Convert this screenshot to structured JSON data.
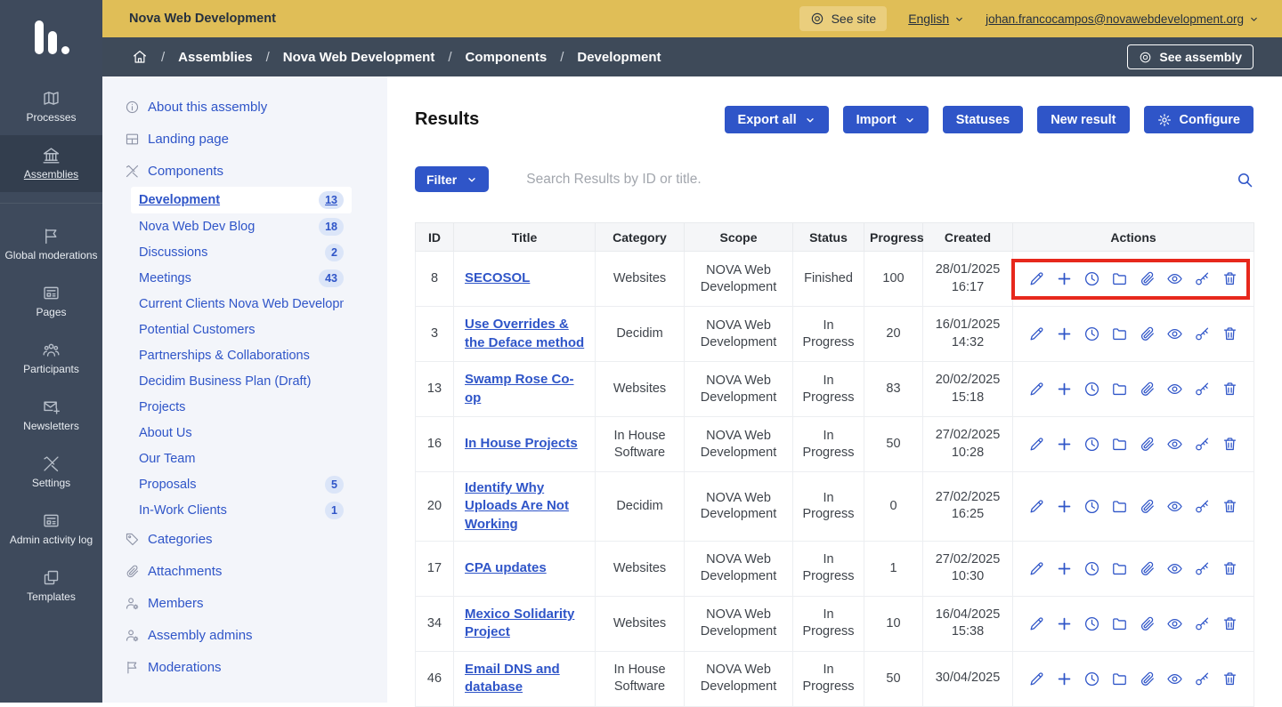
{
  "colors": {
    "primary_blue": "#2f55c8",
    "topbar_yellow": "#e0be57",
    "sidebar_dark": "#3e4a5c",
    "highlight_red": "#e7281c"
  },
  "topbar": {
    "brand": "Nova Web Development",
    "see_site": "See site",
    "language": "English",
    "user_email": "johan.francocampos@novawebdevelopment.org"
  },
  "breadcrumb": {
    "items": [
      "Assemblies",
      "Nova Web Development",
      "Components",
      "Development"
    ],
    "see_assembly": "See assembly"
  },
  "sidebar": {
    "groups": [
      [
        {
          "label": "Processes",
          "icon": "map",
          "active": false
        },
        {
          "label": "Assemblies",
          "icon": "building",
          "active": true
        }
      ],
      [
        {
          "label": "Global moderations",
          "icon": "flag"
        },
        {
          "label": "Pages",
          "icon": "article"
        },
        {
          "label": "Participants",
          "icon": "people"
        },
        {
          "label": "Newsletters",
          "icon": "mail-plus"
        },
        {
          "label": "Settings",
          "icon": "tools"
        },
        {
          "label": "Admin activity log",
          "icon": "article"
        },
        {
          "label": "Templates",
          "icon": "copy"
        }
      ]
    ]
  },
  "subsidebar": {
    "items": [
      {
        "label": "About this assembly",
        "icon": "info"
      },
      {
        "label": "Landing page",
        "icon": "layout"
      },
      {
        "label": "Components",
        "icon": "tools",
        "children": [
          {
            "label": "Development",
            "badge": "13",
            "active": true
          },
          {
            "label": "Nova Web Dev Blog",
            "badge": "18"
          },
          {
            "label": "Discussions",
            "badge": "2"
          },
          {
            "label": "Meetings",
            "badge": "43"
          },
          {
            "label": "Current Clients Nova Web Development"
          },
          {
            "label": "Potential Customers"
          },
          {
            "label": "Partnerships & Collaborations"
          },
          {
            "label": "Decidim Business Plan (Draft)"
          },
          {
            "label": "Projects"
          },
          {
            "label": "About Us"
          },
          {
            "label": "Our Team"
          },
          {
            "label": "Proposals",
            "badge": "5"
          },
          {
            "label": "In-Work Clients",
            "badge": "1"
          }
        ]
      },
      {
        "label": "Categories",
        "icon": "tag"
      },
      {
        "label": "Attachments",
        "icon": "paperclip"
      },
      {
        "label": "Members",
        "icon": "person-gear"
      },
      {
        "label": "Assembly admins",
        "icon": "person-gear"
      },
      {
        "label": "Moderations",
        "icon": "flag"
      }
    ]
  },
  "results": {
    "title": "Results",
    "buttons": [
      {
        "label": "Export all",
        "chevron": true
      },
      {
        "label": "Import",
        "chevron": true
      },
      {
        "label": "Statuses"
      },
      {
        "label": "New result"
      },
      {
        "label": "Configure",
        "icon_before": "gear"
      }
    ],
    "filter_label": "Filter",
    "search_placeholder": "Search Results by ID or title.",
    "table": {
      "columns": [
        "ID",
        "Title",
        "Category",
        "Scope",
        "Status",
        "Progress",
        "Created",
        "Actions"
      ],
      "action_icons": [
        {
          "action": "edit",
          "icon": "pencil"
        },
        {
          "action": "add",
          "icon": "plus"
        },
        {
          "action": "history",
          "icon": "clock"
        },
        {
          "action": "folder",
          "icon": "folder"
        },
        {
          "action": "attachments",
          "icon": "paperclip"
        },
        {
          "action": "preview",
          "icon": "eye"
        },
        {
          "action": "permissions",
          "icon": "key"
        },
        {
          "action": "delete",
          "icon": "trash"
        }
      ],
      "rows": [
        {
          "id": "8",
          "title": "SECOSOL",
          "category": "Websites",
          "scope": "NOVA Web Development",
          "status": "Finished",
          "progress": "100",
          "created_date": "28/01/2025",
          "created_time": "16:17",
          "highlighted": true
        },
        {
          "id": "3",
          "title": "Use Overrides & the Deface method",
          "category": "Decidim",
          "scope": "NOVA Web Development",
          "status": "In Progress",
          "progress": "20",
          "created_date": "16/01/2025",
          "created_time": "14:32"
        },
        {
          "id": "13",
          "title": "Swamp Rose Co-op",
          "category": "Websites",
          "scope": "NOVA Web Development",
          "status": "In Progress",
          "progress": "83",
          "created_date": "20/02/2025",
          "created_time": "15:18"
        },
        {
          "id": "16",
          "title": "In House Projects",
          "category": "In House Software",
          "scope": "NOVA Web Development",
          "status": "In Progress",
          "progress": "50",
          "created_date": "27/02/2025",
          "created_time": "10:28"
        },
        {
          "id": "20",
          "title": "Identify Why Uploads Are Not Working",
          "category": "Decidim",
          "scope": "NOVA Web Development",
          "status": "In Progress",
          "progress": "0",
          "created_date": "27/02/2025",
          "created_time": "16:25"
        },
        {
          "id": "17",
          "title": "CPA updates",
          "category": "Websites",
          "scope": "NOVA Web Development",
          "status": "In Progress",
          "progress": "1",
          "created_date": "27/02/2025",
          "created_time": "10:30"
        },
        {
          "id": "34",
          "title": "Mexico Solidarity Project",
          "category": "Websites",
          "scope": "NOVA Web Development",
          "status": "In Progress",
          "progress": "10",
          "created_date": "16/04/2025",
          "created_time": "15:38"
        },
        {
          "id": "46",
          "title": "Email DNS and database",
          "category": "In House Software",
          "scope": "NOVA Web Development",
          "status": "In Progress",
          "progress": "50",
          "created_date": "30/04/2025",
          "created_time": ""
        }
      ]
    }
  }
}
